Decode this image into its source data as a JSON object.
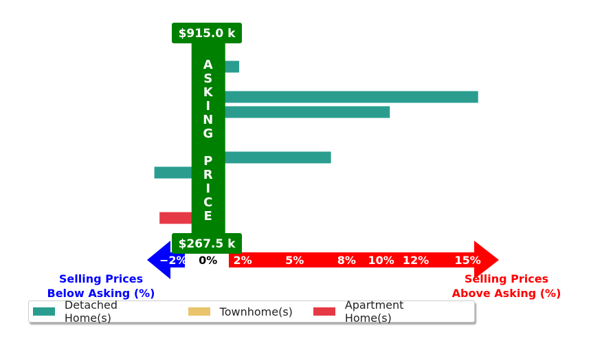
{
  "chart_data": {
    "type": "bar",
    "orientation": "horizontal",
    "xlim": [
      -3.6,
      16.8
    ],
    "x_ticks": [
      {
        "value": -2,
        "label": "−2%"
      },
      {
        "value": 0,
        "label": "0%"
      },
      {
        "value": 2,
        "label": "2%"
      },
      {
        "value": 5,
        "label": "5%"
      },
      {
        "value": 8,
        "label": "8%"
      },
      {
        "value": 10,
        "label": "10%"
      },
      {
        "value": 12,
        "label": "12%"
      },
      {
        "value": 15,
        "label": "15%"
      }
    ],
    "top_price_label": "$915.0 k",
    "bottom_price_label": "$267.5 k",
    "band_letters": [
      "A",
      "S",
      "K",
      "I",
      "N",
      "G",
      "",
      "P",
      "R",
      "I",
      "C",
      "E"
    ],
    "left_label": [
      "Selling Prices",
      "Below Asking (%)"
    ],
    "right_label": [
      "Selling Prices",
      "Above Asking (%)"
    ],
    "series": [
      {
        "name": "Detached Home(s)",
        "color": "#2a9d8f"
      },
      {
        "name": "Townhome(s)",
        "color": "#e9c46a"
      },
      {
        "name": "Apartment Home(s)",
        "color": "#e63946"
      }
    ],
    "bars": [
      {
        "row": 0,
        "series": 0,
        "value": 0.1
      },
      {
        "row": 1,
        "series": 0,
        "value": 1.8
      },
      {
        "row": 2,
        "series": 0,
        "value": -0.9
      },
      {
        "row": 3,
        "series": 0,
        "value": 15.6
      },
      {
        "row": 4,
        "series": 0,
        "value": 10.5
      },
      {
        "row": 5,
        "series": 2,
        "value": 0.1
      },
      {
        "row": 6,
        "series": 0,
        "value": 0.1
      },
      {
        "row": 7,
        "series": 0,
        "value": 7.1
      },
      {
        "row": 8,
        "series": 0,
        "value": -3.1
      },
      {
        "row": 9,
        "series": 2,
        "value": 0.1
      },
      {
        "row": 10,
        "series": 1,
        "value": 0.1
      },
      {
        "row": 11,
        "series": 2,
        "value": -2.8
      },
      {
        "row": 12,
        "series": 2,
        "value": -0.1
      }
    ]
  },
  "legend": {
    "items": [
      {
        "label": "Detached Home(s)",
        "color": "#2a9d8f"
      },
      {
        "label": "Townhome(s)",
        "color": "#e9c46a"
      },
      {
        "label": "Apartment Home(s)",
        "color": "#e63946"
      }
    ]
  },
  "colors": {
    "band": "#008000",
    "left_arrow": "#0000ff",
    "right_arrow": "#ff0000"
  }
}
